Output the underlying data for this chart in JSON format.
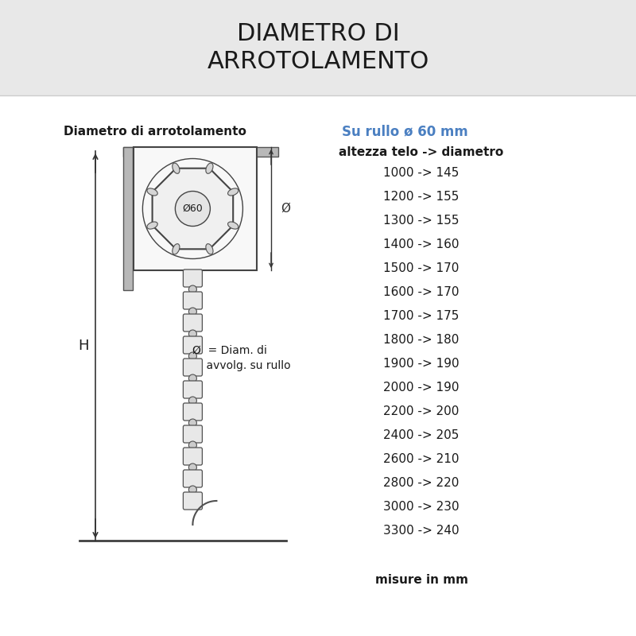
{
  "title": "DIAMETRO DI\nARROTOLAMENTO",
  "title_bg_color": "#e8e8e8",
  "bg_color": "#ffffff",
  "subtitle_left": "Diametro di arrotolamento",
  "subtitle_right": "Su rullo ø 60 mm",
  "subtitle_right_color": "#4a7fc1",
  "col_header": "altezza telo -> diametro",
  "rows": [
    "1000 -> 145",
    "1200 -> 155",
    "1300 -> 155",
    "1400 -> 160",
    "1500 -> 170",
    "1600 -> 170",
    "1700 -> 175",
    "1800 -> 180",
    "1900 -> 190",
    "2000 -> 190",
    "2200 -> 200",
    "2400 -> 205",
    "2600 -> 210",
    "2800 -> 220",
    "3000 -> 230",
    "3300 -> 240"
  ],
  "footer": "misure in mm",
  "label_H": "H",
  "label_phi": "Ø  = Diam. di\n    avvolg. su rullo",
  "label_phi60": "Ø60"
}
